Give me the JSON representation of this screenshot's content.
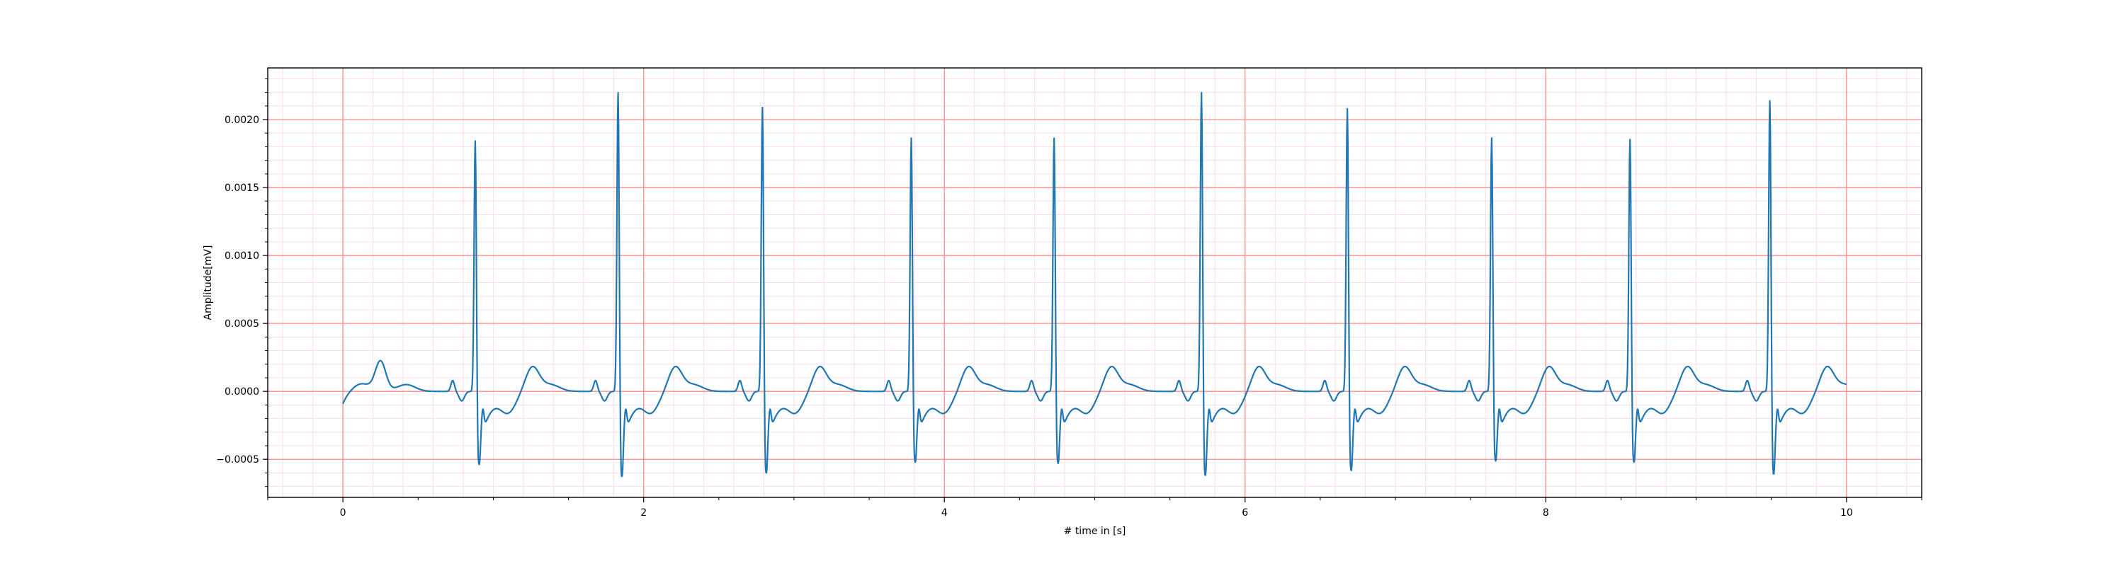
{
  "chart_data": {
    "type": "line",
    "title": "",
    "xlabel": "# time in [s]",
    "ylabel": "Amplitude[mV]",
    "xlim": [
      -0.5,
      10.5
    ],
    "ylim": [
      -0.00078,
      0.00238
    ],
    "xticks": [
      0,
      2,
      4,
      6,
      8,
      10
    ],
    "xtick_labels": [
      "0",
      "2",
      "4",
      "6",
      "8",
      "10"
    ],
    "yticks": [
      -0.0005,
      0.0,
      0.0005,
      0.001,
      0.0015,
      0.002
    ],
    "ytick_labels": [
      "−0.0005",
      "0.0000",
      "0.0005",
      "0.0010",
      "0.0015",
      "0.0020"
    ],
    "grid": {
      "major": true,
      "minor": true,
      "major_color": "#ff8a8a",
      "minor_color": "#ffdce6"
    },
    "line_color": "#1f77b4",
    "series": [
      {
        "name": "",
        "beats": [
          {
            "r_time": 0.88,
            "r_peak": 0.00187,
            "s_min": -0.00055
          },
          {
            "r_time": 1.83,
            "r_peak": 0.00223,
            "s_min": -0.00065
          },
          {
            "r_time": 2.79,
            "r_peak": 0.00212,
            "s_min": -0.00062
          },
          {
            "r_time": 3.78,
            "r_peak": 0.00189,
            "s_min": -0.00053
          },
          {
            "r_time": 4.73,
            "r_peak": 0.00189,
            "s_min": -0.00054
          },
          {
            "r_time": 5.71,
            "r_peak": 0.00223,
            "s_min": -0.00064
          },
          {
            "r_time": 6.68,
            "r_peak": 0.00211,
            "s_min": -0.0006
          },
          {
            "r_time": 7.64,
            "r_peak": 0.00189,
            "s_min": -0.00052
          },
          {
            "r_time": 8.56,
            "r_peak": 0.00188,
            "s_min": -0.00053
          },
          {
            "r_time": 9.49,
            "r_peak": 0.00217,
            "s_min": -0.00063
          }
        ],
        "t_wave_amp": 0.00018,
        "initial_value": -0.0001,
        "x_start": 0.0,
        "x_end": 10.0
      }
    ]
  }
}
